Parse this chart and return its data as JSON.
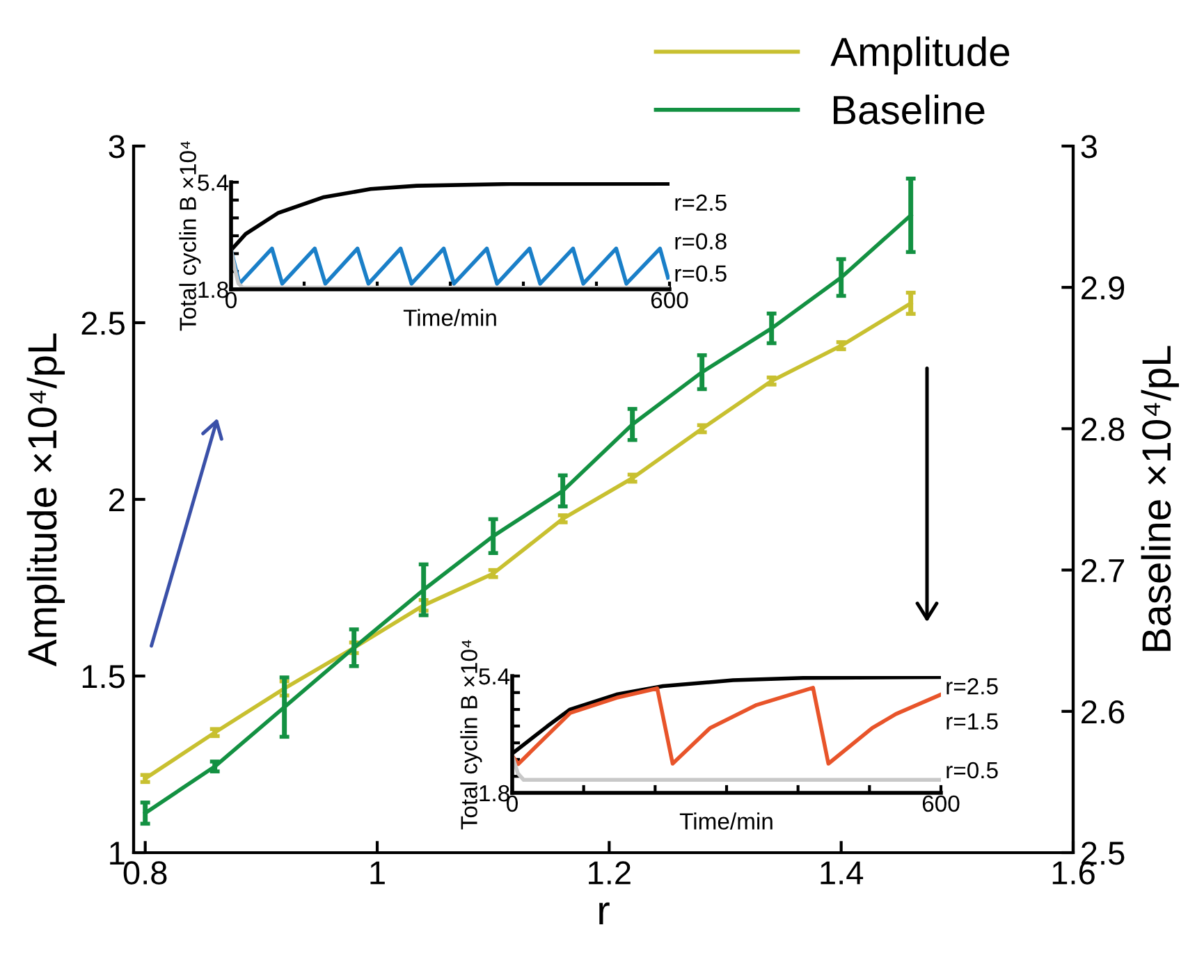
{
  "chart_data": [
    {
      "type": "line",
      "xlabel": "r",
      "ylabel": "Amplitude ×10⁴/pL",
      "y2label": "Baseline ×10⁴/pL",
      "x": [
        0.8,
        0.86,
        0.92,
        0.98,
        1.04,
        1.1,
        1.16,
        1.22,
        1.28,
        1.34,
        1.4,
        1.46
      ],
      "xlim": [
        0.79,
        1.6
      ],
      "xticks": [
        0.8,
        1,
        1.2,
        1.4,
        1.6
      ],
      "ylim": [
        1,
        3
      ],
      "yticks": [
        1,
        1.5,
        2,
        2.5,
        3
      ],
      "y2lim": [
        2.5,
        3
      ],
      "y2ticks": [
        2.5,
        2.6,
        2.7,
        2.8,
        2.9,
        3
      ],
      "legend": "top right",
      "marker": "none",
      "line_style": "solid",
      "grid": false,
      "series": [
        {
          "name": "Amplitude",
          "color": "#c8c030",
          "values": [
            1.21,
            1.34,
            1.465,
            1.58,
            1.7,
            1.79,
            1.945,
            2.06,
            2.2,
            2.335,
            2.435,
            2.555
          ],
          "errors": [
            0.01,
            0.01,
            0.02,
            0.015,
            0.015,
            0.01,
            0.01,
            0.01,
            0.01,
            0.01,
            0.01,
            0.03
          ]
        },
        {
          "name": "Baseline",
          "color": "#139142",
          "axis": "y2",
          "values": [
            2.528,
            2.561,
            2.603,
            2.645,
            2.686,
            2.724,
            2.756,
            2.803,
            2.84,
            2.871,
            2.907,
            2.951
          ],
          "errors": [
            0.0075,
            0.0035,
            0.021,
            0.013,
            0.018,
            0.012,
            0.011,
            0.011,
            0.012,
            0.0105,
            0.013,
            0.026
          ]
        }
      ]
    },
    {
      "type": "line",
      "xlabel": "Time/min",
      "ylabel": "Total cyclin B ×10⁴",
      "xlim": [
        0,
        600
      ],
      "xticks": [
        0,
        {
          "value": 100,
          "label": null
        },
        {
          "value": 200,
          "label": null
        },
        {
          "value": 300,
          "label": null
        },
        {
          "value": 400,
          "label": null
        },
        {
          "value": 500,
          "label": null
        },
        600
      ],
      "ylim": [
        1.8,
        5.4
      ],
      "yticks": [
        1.8,
        {
          "value": 2.4,
          "label": null
        },
        {
          "value": 3.0,
          "label": null
        },
        {
          "value": 3.6,
          "label": null
        },
        {
          "value": 4.2,
          "label": null
        },
        {
          "value": 4.8,
          "label": null
        },
        5.4
      ],
      "legend": false,
      "grid": false,
      "series": [
        {
          "name": "r=2.5",
          "color": "#000000",
          "x": [
            0,
            20,
            64,
            127,
            191,
            254,
            382,
            600
          ],
          "values": [
            3.12,
            3.66,
            4.36,
            4.9,
            5.17,
            5.28,
            5.34,
            5.35
          ]
        },
        {
          "name": "r=0.8",
          "color": "#1a7fc8",
          "x": [
            0,
            11.5,
            56,
            70,
            114.5,
            129,
            173,
            188,
            232,
            247,
            291,
            305,
            350,
            364,
            408.5,
            423,
            468,
            482,
            527,
            541,
            587,
            598
          ],
          "values": [
            3.12,
            1.99,
            3.17,
            1.99,
            3.17,
            1.99,
            3.17,
            1.99,
            3.17,
            1.99,
            3.17,
            1.99,
            3.17,
            1.99,
            3.17,
            1.99,
            3.17,
            1.99,
            3.17,
            1.99,
            3.17,
            2.19
          ]
        },
        {
          "name": "r=0.5",
          "color": "#c8c8c8",
          "x": [
            0,
            5,
            10,
            16,
            600
          ],
          "values": [
            3.12,
            2.5,
            2.0,
            1.86,
            1.85
          ]
        }
      ]
    },
    {
      "type": "line",
      "xlabel": "Time/min",
      "ylabel": "Total cyclin B ×10⁴",
      "xlim": [
        0,
        600
      ],
      "xticks": [
        0,
        {
          "value": 100,
          "label": null
        },
        {
          "value": 200,
          "label": null
        },
        {
          "value": 300,
          "label": null
        },
        {
          "value": 400,
          "label": null
        },
        {
          "value": 500,
          "label": null
        },
        600
      ],
      "ylim": [
        1.8,
        5.4
      ],
      "yticks": [
        1.8,
        {
          "value": 2.31,
          "label": null
        },
        {
          "value": 2.83,
          "label": null
        },
        {
          "value": 3.34,
          "label": null
        },
        {
          "value": 3.86,
          "label": null
        },
        {
          "value": 4.37,
          "label": null
        },
        {
          "value": 4.89,
          "label": null
        },
        5.4
      ],
      "legend": false,
      "grid": false,
      "series": [
        {
          "name": "r=2.5",
          "color": "#000000",
          "x": [
            0,
            49,
            81,
            146,
            211,
            309,
            407,
            600
          ],
          "values": [
            3.01,
            3.85,
            4.37,
            4.83,
            5.09,
            5.27,
            5.34,
            5.37
          ]
        },
        {
          "name": "r=1.5",
          "color": "#e8542a",
          "x": [
            0,
            8.5,
            81,
            146,
            203,
            224.5,
            277,
            342,
            421,
            442.5,
            504,
            537,
            600
          ],
          "values": [
            2.94,
            2.69,
            4.26,
            4.73,
            5.02,
            2.7,
            3.8,
            4.51,
            5.04,
            2.7,
            3.8,
            4.23,
            4.83
          ]
        },
        {
          "name": "r=0.5",
          "color": "#c8c8c8",
          "x": [
            0,
            8,
            16,
            600
          ],
          "values": [
            2.94,
            2.4,
            2.2,
            2.2
          ]
        }
      ]
    }
  ]
}
